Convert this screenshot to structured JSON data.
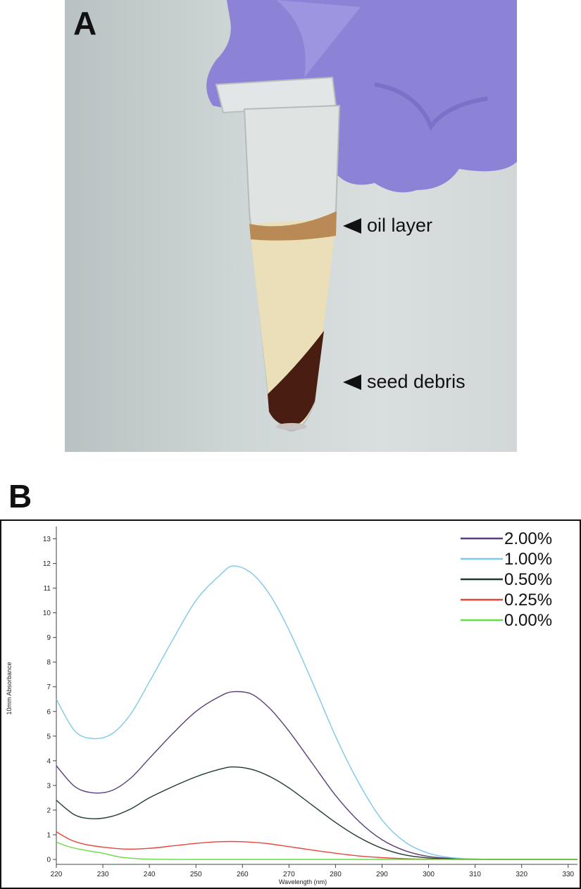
{
  "panel_a": {
    "label": "A",
    "annotations": {
      "oil_layer": "oil layer",
      "seed_debris": "seed debris"
    }
  },
  "panel_b": {
    "label": "B"
  },
  "chart_data": {
    "type": "line",
    "title": "",
    "xlabel": "Wavelength (nm)",
    "ylabel": "10mm Absorbance",
    "xlim": [
      220,
      332
    ],
    "ylim": [
      -0.2,
      13.5
    ],
    "xticks": [
      220,
      230,
      240,
      250,
      260,
      270,
      280,
      290,
      300,
      310,
      320,
      330
    ],
    "yticks": [
      0,
      1,
      2,
      3,
      4,
      5,
      6,
      7,
      8,
      9,
      10,
      11,
      12,
      13
    ],
    "grid": false,
    "legend_position": "top-right",
    "series": [
      {
        "name": "2.00%",
        "color": "#5a3d7a",
        "x": [
          220,
          224,
          228,
          232,
          236,
          240,
          245,
          250,
          255,
          258,
          262,
          266,
          270,
          275,
          280,
          285,
          290,
          295,
          300,
          305,
          310,
          315,
          320,
          332
        ],
        "y": [
          3.8,
          2.95,
          2.7,
          2.8,
          3.3,
          4.1,
          5.1,
          6.0,
          6.6,
          6.8,
          6.7,
          6.1,
          5.2,
          3.9,
          2.6,
          1.55,
          0.8,
          0.35,
          0.12,
          0.04,
          0.01,
          0.0,
          0.0,
          0.0
        ]
      },
      {
        "name": "1.00%",
        "color": "#7ec8e8",
        "x": [
          220,
          224,
          228,
          232,
          236,
          240,
          245,
          250,
          255,
          258,
          262,
          266,
          270,
          275,
          280,
          285,
          290,
          295,
          300,
          305,
          310,
          315,
          320,
          332
        ],
        "y": [
          6.5,
          5.2,
          4.9,
          5.1,
          5.9,
          7.2,
          8.9,
          10.5,
          11.5,
          11.9,
          11.6,
          10.7,
          9.3,
          7.2,
          5.0,
          3.1,
          1.6,
          0.7,
          0.25,
          0.07,
          0.02,
          0.0,
          0.0,
          0.0
        ]
      },
      {
        "name": "0.50%",
        "color": "#1f3a32",
        "x": [
          220,
          224,
          228,
          232,
          236,
          240,
          245,
          250,
          255,
          258,
          262,
          266,
          270,
          275,
          280,
          285,
          290,
          295,
          300,
          305,
          310,
          315,
          320,
          332
        ],
        "y": [
          2.4,
          1.8,
          1.65,
          1.75,
          2.05,
          2.5,
          2.95,
          3.35,
          3.65,
          3.75,
          3.65,
          3.35,
          2.9,
          2.2,
          1.5,
          0.9,
          0.45,
          0.18,
          0.06,
          0.02,
          0.0,
          0.0,
          0.0,
          0.0
        ]
      },
      {
        "name": "0.25%",
        "color": "#e8453c",
        "x": [
          220,
          223,
          226,
          230,
          235,
          240,
          245,
          250,
          255,
          260,
          265,
          270,
          275,
          280,
          285,
          290,
          295,
          300,
          305,
          310,
          320,
          332
        ],
        "y": [
          1.12,
          0.8,
          0.62,
          0.5,
          0.42,
          0.45,
          0.55,
          0.65,
          0.72,
          0.72,
          0.65,
          0.52,
          0.38,
          0.25,
          0.14,
          0.07,
          0.03,
          0.01,
          0.0,
          0.0,
          0.0,
          0.0
        ]
      },
      {
        "name": "0.00%",
        "color": "#66dd44",
        "x": [
          220,
          223,
          226,
          230,
          233,
          236,
          240,
          245,
          250,
          260,
          280,
          300,
          332
        ],
        "y": [
          0.7,
          0.5,
          0.38,
          0.25,
          0.12,
          0.05,
          0.01,
          0.0,
          0.0,
          0.0,
          0.0,
          0.0,
          0.0
        ]
      }
    ]
  }
}
